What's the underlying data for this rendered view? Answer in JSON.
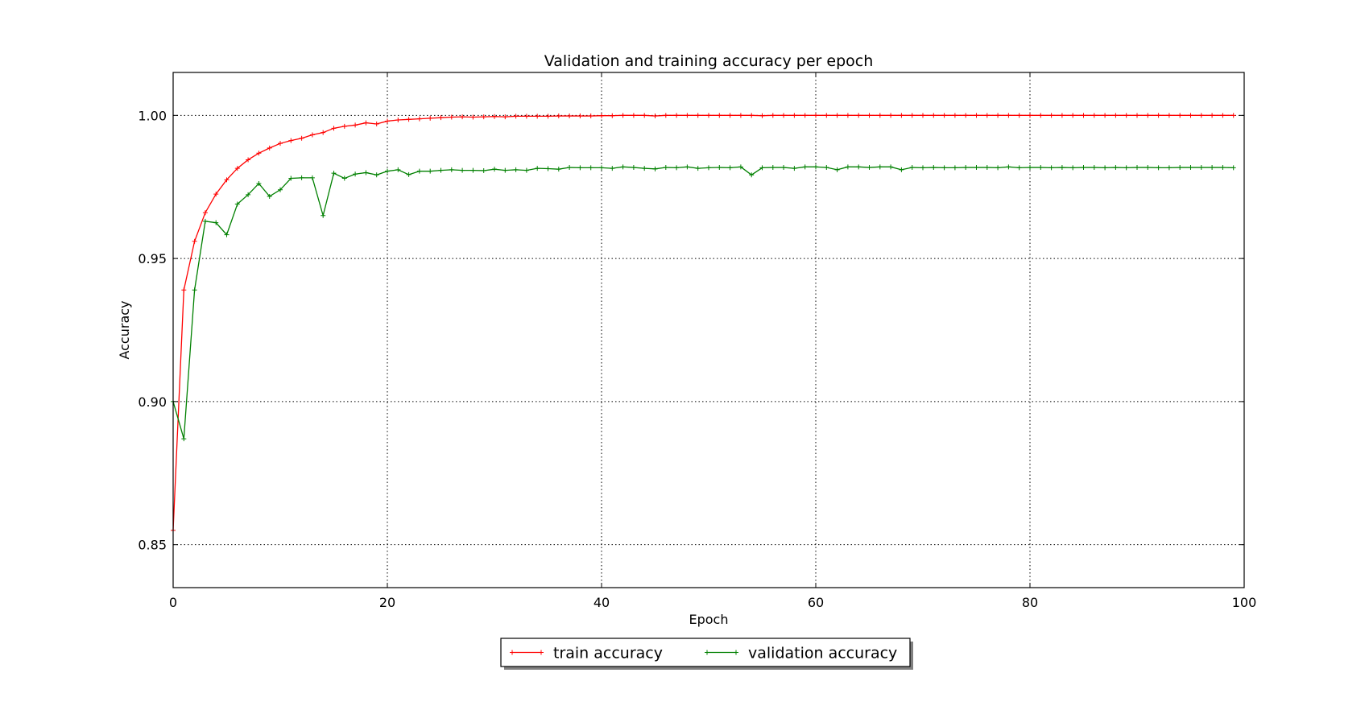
{
  "chart_data": {
    "type": "line",
    "title": "Validation and training accuracy per epoch",
    "xlabel": "Epoch",
    "ylabel": "Accuracy",
    "xlim": [
      0,
      100
    ],
    "ylim": [
      0.835,
      1.015
    ],
    "xticks": [
      0,
      20,
      40,
      60,
      80,
      100
    ],
    "xtick_labels": [
      "0",
      "20",
      "40",
      "60",
      "80",
      "100"
    ],
    "yticks": [
      0.85,
      0.9,
      0.95,
      1.0
    ],
    "ytick_labels": [
      "0.85",
      "0.90",
      "0.95",
      "1.00"
    ],
    "grid": true,
    "legend_position": "bottom-center-outside",
    "series": [
      {
        "name": "train accuracy",
        "color": "#ff0000",
        "marker": "+",
        "values": [
          0.855,
          0.939,
          0.956,
          0.966,
          0.9725,
          0.9775,
          0.9815,
          0.9845,
          0.9868,
          0.9886,
          0.9902,
          0.9912,
          0.992,
          0.9932,
          0.994,
          0.9955,
          0.9962,
          0.9966,
          0.9974,
          0.997,
          0.998,
          0.9984,
          0.9986,
          0.9988,
          0.999,
          0.9992,
          0.9994,
          0.9995,
          0.9994,
          0.9995,
          0.9996,
          0.9995,
          0.9997,
          0.9997,
          0.9997,
          0.9997,
          0.9998,
          0.9998,
          0.9998,
          0.9998,
          0.9999,
          0.9999,
          1.0,
          1.0,
          1.0,
          0.9998,
          1.0,
          1.0,
          1.0,
          1.0,
          1.0,
          1.0,
          1.0,
          1.0,
          1.0,
          0.9999,
          1.0,
          1.0,
          1.0,
          1.0,
          1.0,
          1.0,
          1.0,
          1.0,
          1.0,
          1.0,
          1.0,
          1.0,
          1.0,
          1.0,
          1.0,
          1.0,
          1.0,
          1.0,
          1.0,
          1.0,
          1.0,
          1.0,
          1.0,
          1.0,
          1.0,
          1.0,
          1.0,
          1.0,
          1.0,
          1.0,
          1.0,
          1.0,
          1.0,
          1.0,
          1.0,
          1.0,
          1.0,
          1.0,
          1.0,
          1.0,
          1.0,
          1.0,
          1.0,
          1.0
        ]
      },
      {
        "name": "validation accuracy",
        "color": "#008000",
        "marker": "+",
        "values": [
          0.9,
          0.887,
          0.939,
          0.963,
          0.9625,
          0.9583,
          0.969,
          0.9723,
          0.9762,
          0.9717,
          0.974,
          0.978,
          0.9782,
          0.9782,
          0.965,
          0.9798,
          0.978,
          0.9795,
          0.98,
          0.9792,
          0.9805,
          0.981,
          0.9793,
          0.9805,
          0.9805,
          0.9808,
          0.981,
          0.9808,
          0.9808,
          0.9807,
          0.9812,
          0.9808,
          0.981,
          0.9808,
          0.9815,
          0.9814,
          0.9812,
          0.9818,
          0.9817,
          0.9817,
          0.9817,
          0.9815,
          0.982,
          0.9818,
          0.9815,
          0.9813,
          0.9818,
          0.9817,
          0.982,
          0.9815,
          0.9817,
          0.9818,
          0.9817,
          0.982,
          0.9792,
          0.9817,
          0.9818,
          0.9818,
          0.9815,
          0.982,
          0.982,
          0.9818,
          0.981,
          0.982,
          0.982,
          0.9818,
          0.982,
          0.982,
          0.981,
          0.9818,
          0.9817,
          0.9818,
          0.9817,
          0.9817,
          0.9818,
          0.9818,
          0.9818,
          0.9817,
          0.982,
          0.9817,
          0.9818,
          0.9818,
          0.9817,
          0.9818,
          0.9817,
          0.9818,
          0.9818,
          0.9817,
          0.9818,
          0.9817,
          0.9818,
          0.9818,
          0.9817,
          0.9817,
          0.9818,
          0.9818,
          0.9818,
          0.9818,
          0.9818,
          0.9817
        ]
      }
    ]
  }
}
